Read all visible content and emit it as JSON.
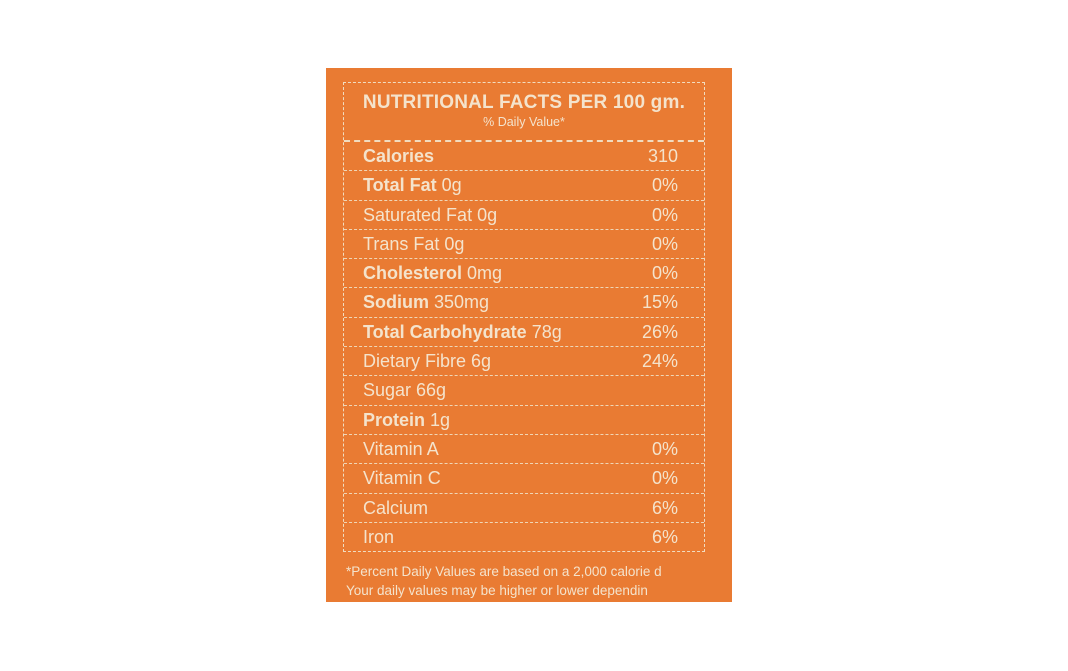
{
  "label": {
    "title": "NUTRITIONAL FACTS PER 100 gm.",
    "subtitle": "% Daily Value*",
    "rows": [
      {
        "bold": "Calories",
        "rest": "",
        "value": "310"
      },
      {
        "bold": "Total Fat",
        "rest": " 0g",
        "value": "0%"
      },
      {
        "bold": "",
        "rest": "Saturated Fat 0g",
        "value": "0%"
      },
      {
        "bold": "",
        "rest": "Trans Fat 0g",
        "value": "0%"
      },
      {
        "bold": "Cholesterol",
        "rest": " 0mg",
        "value": "0%"
      },
      {
        "bold": "Sodium",
        "rest": " 350mg",
        "value": "15%"
      },
      {
        "bold": "Total Carbohydrate",
        "rest": " 78g",
        "value": "26%"
      },
      {
        "bold": "",
        "rest": "Dietary Fibre 6g",
        "value": "24%"
      },
      {
        "bold": "",
        "rest": "Sugar 66g",
        "value": ""
      },
      {
        "bold": "Protein",
        "rest": " 1g",
        "value": ""
      },
      {
        "bold": "",
        "rest": "Vitamin A",
        "value": "0%"
      },
      {
        "bold": "",
        "rest": "Vitamin C",
        "value": "0%"
      },
      {
        "bold": "",
        "rest": "Calcium",
        "value": "6%"
      },
      {
        "bold": "",
        "rest": "Iron",
        "value": "6%"
      }
    ],
    "footnote_1": "*Percent Daily Values are based on a 2,000 calorie d",
    "footnote_2": "Your daily values may be higher or lower dependin"
  },
  "colors": {
    "background": "#e97b33",
    "text": "#f4e3cc"
  }
}
